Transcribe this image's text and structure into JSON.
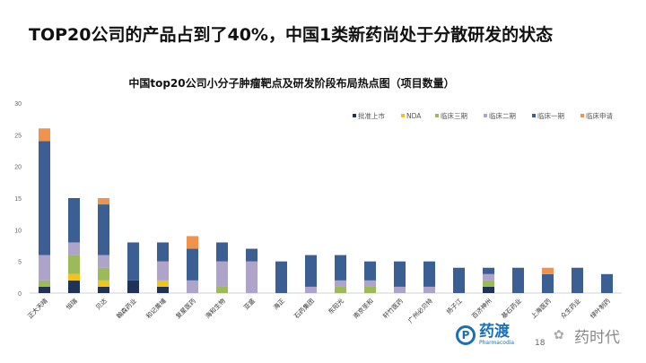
{
  "slide_title": "TOP20公司的产品占到了40%，中国1类新药尚处于分散研发的状态",
  "chart_data": {
    "type": "bar",
    "stacked": true,
    "title": "中国top20公司小分子肿瘤靶点及研发阶段布局热点图（项目数量）",
    "xlabel": "",
    "ylabel": "",
    "ylim": [
      0,
      30
    ],
    "yticks": [
      "0",
      "5",
      "10",
      "15",
      "20",
      "25",
      "30"
    ],
    "legend_position": "top-right",
    "categories": [
      "正大天晴",
      "恒瑞",
      "贝达",
      "翰森药业",
      "和记黄埔",
      "复星医药",
      "海和生物",
      "亚盛",
      "海正",
      "石药集团",
      "东阳光",
      "南京圣和",
      "轩竹医药",
      "广州必贝特",
      "扬子江",
      "百济神州",
      "基石药业",
      "上海医药",
      "众生药业",
      "绿叶制药"
    ],
    "series": [
      {
        "name": "批准上市",
        "color": "#1f3358",
        "values": [
          1,
          2,
          1,
          2,
          1,
          0,
          0,
          0,
          0,
          0,
          0,
          0,
          0,
          0,
          0,
          1,
          0,
          0,
          0,
          0
        ]
      },
      {
        "name": "NDA",
        "color": "#f2c31b",
        "values": [
          0,
          1,
          1,
          0,
          1,
          0,
          0,
          0,
          0,
          0,
          0,
          0,
          0,
          0,
          0,
          0,
          0,
          0,
          0,
          0
        ]
      },
      {
        "name": "临床三期",
        "color": "#9bbb59",
        "values": [
          1,
          3,
          2,
          0,
          0,
          0,
          1,
          0,
          0,
          0,
          1,
          1,
          0,
          0,
          0,
          1,
          0,
          0,
          0,
          0
        ]
      },
      {
        "name": "临床二期",
        "color": "#aea3c9",
        "values": [
          4,
          2,
          2,
          0,
          3,
          2,
          4,
          5,
          0,
          1,
          1,
          1,
          1,
          1,
          0,
          1,
          0,
          0,
          0,
          0
        ]
      },
      {
        "name": "临床一期",
        "color": "#3b5f92",
        "values": [
          18,
          7,
          8,
          6,
          3,
          5,
          3,
          2,
          5,
          5,
          4,
          3,
          4,
          4,
          4,
          1,
          4,
          3,
          4,
          3
        ]
      },
      {
        "name": "临床申请",
        "color": "#f0944d",
        "values": [
          2,
          0,
          1,
          0,
          0,
          2,
          0,
          0,
          0,
          0,
          0,
          0,
          0,
          0,
          0,
          0,
          0,
          1,
          0,
          0
        ]
      }
    ]
  },
  "footer": {
    "logo_cn": "药渡",
    "logo_en": "Pharmacodia",
    "page_number": "18",
    "watermark": "药时代"
  }
}
